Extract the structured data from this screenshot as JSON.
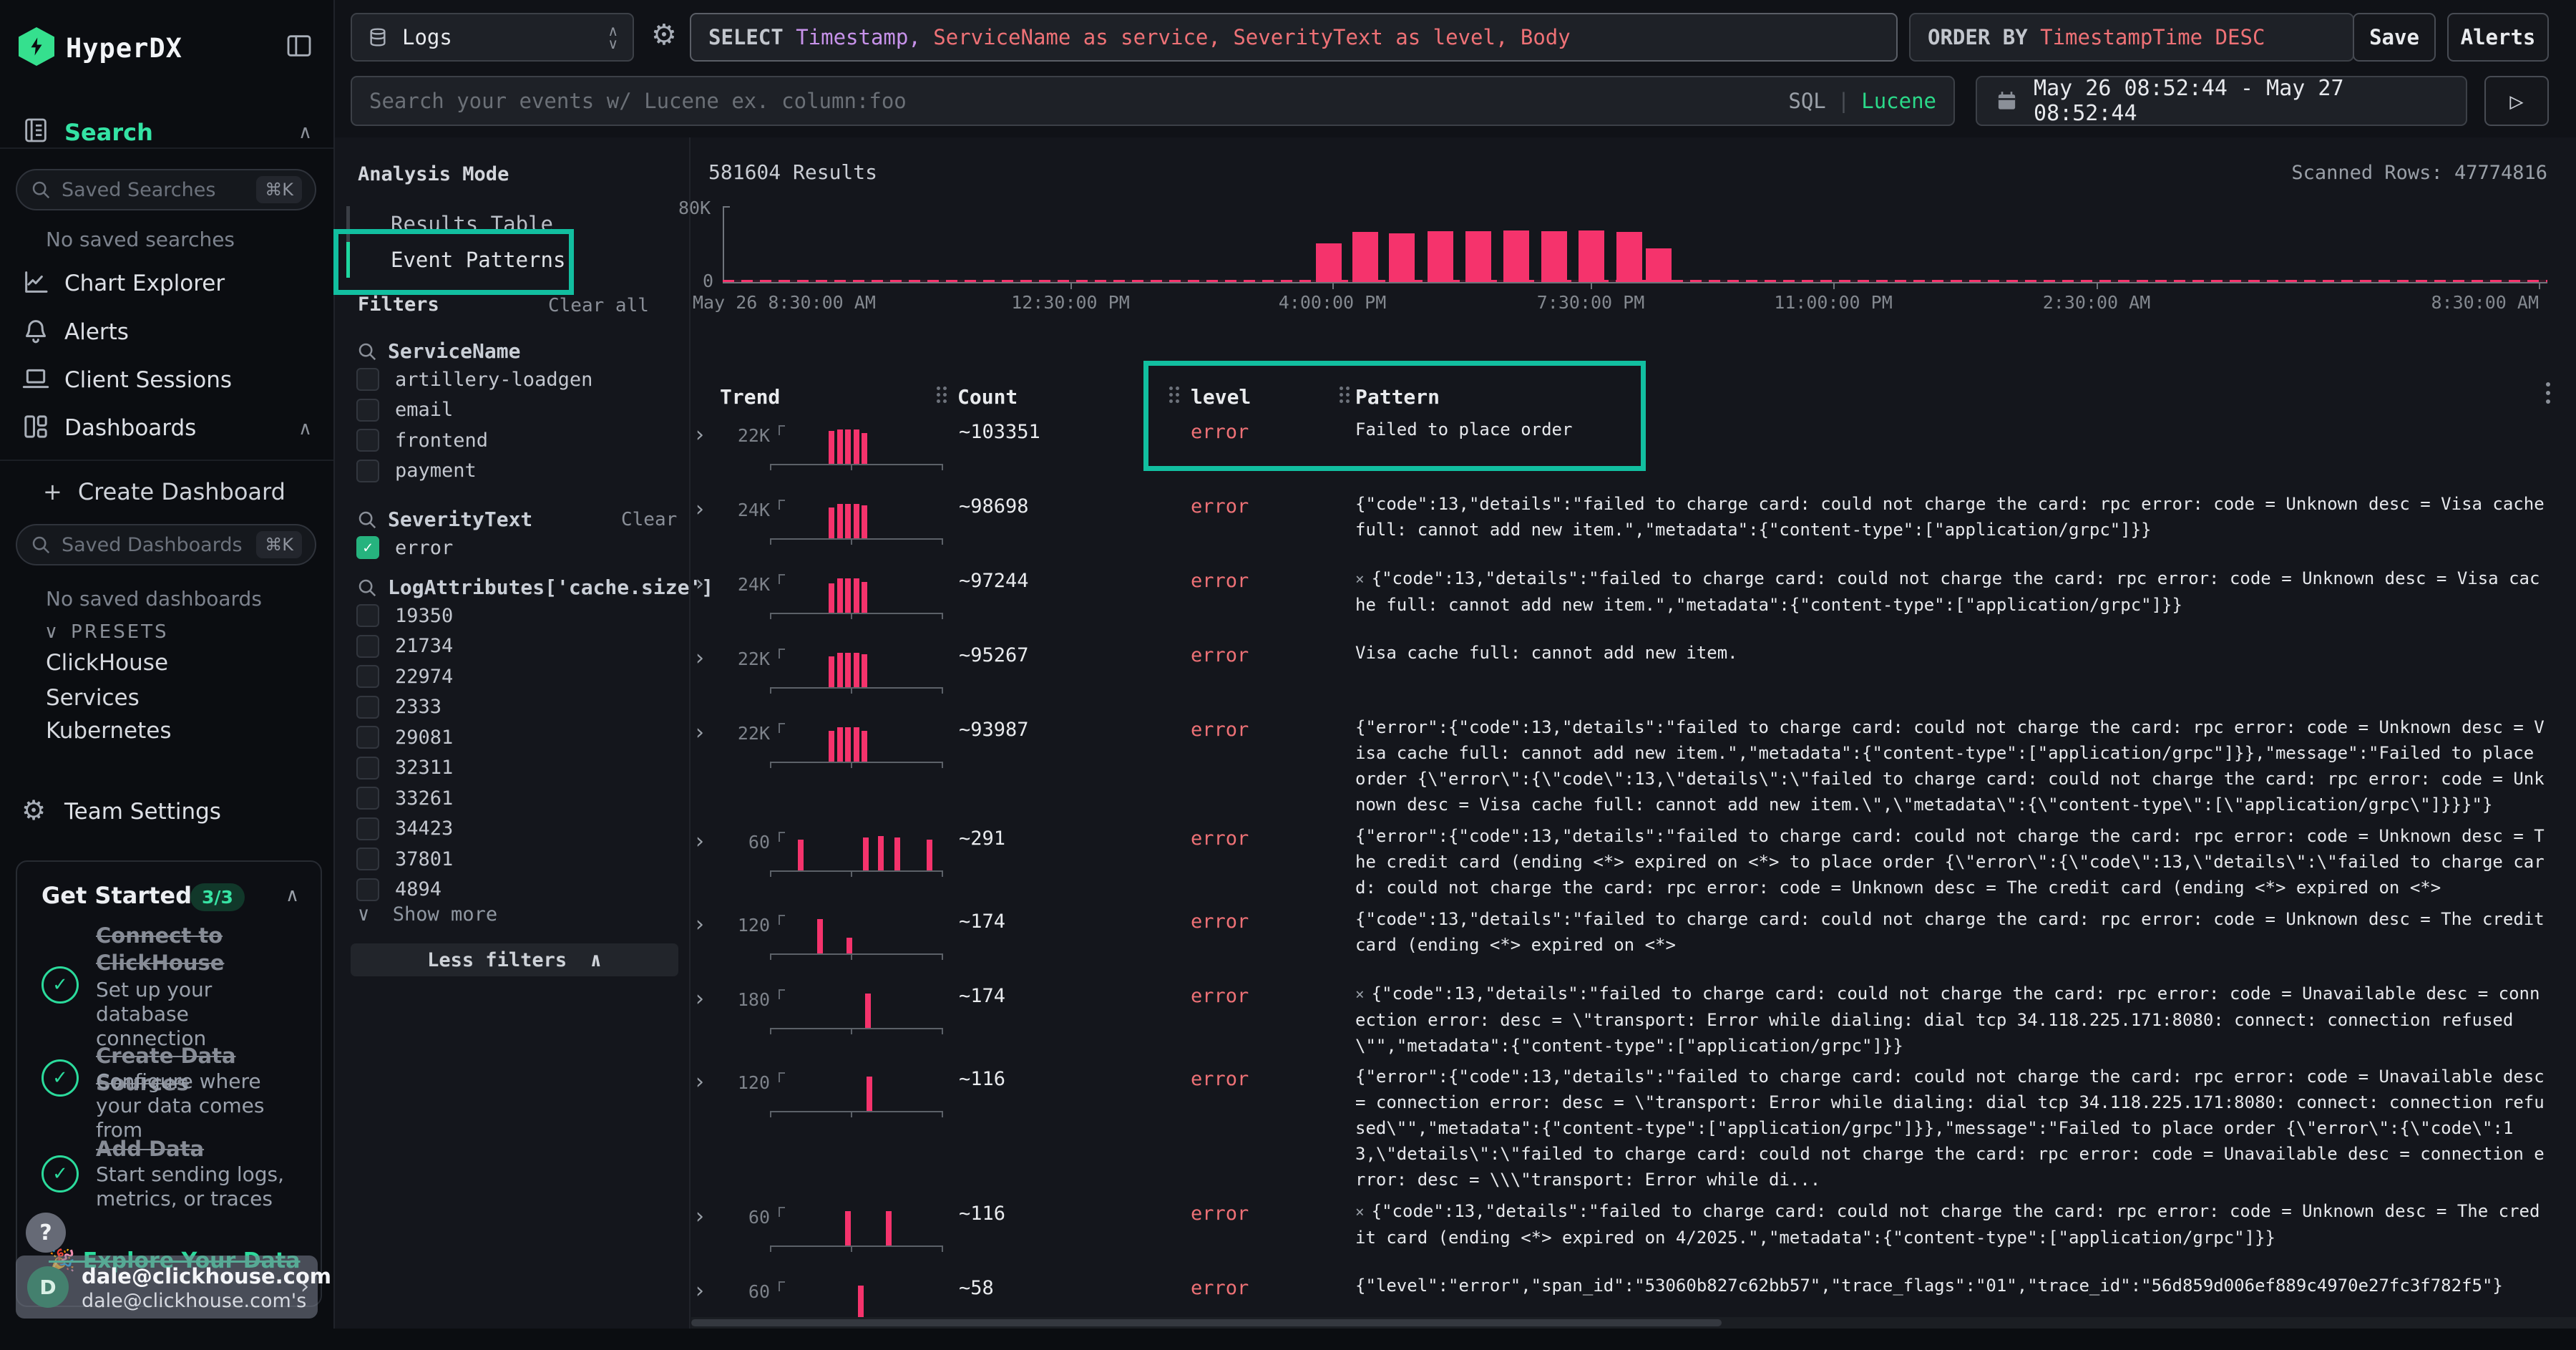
{
  "colors": {
    "accent_green": "#2fe0a2",
    "pink_bar": "#f5336c",
    "salmon": "#ee7176",
    "purple": "#c792ea",
    "teal_annotation": "#12bfa0",
    "checkbox_green": "#26b37e"
  },
  "sidebar": {
    "brand": "HyperDX",
    "search_label": "Search",
    "saved_searches_placeholder": "Saved Searches",
    "shortcut": "⌘K",
    "no_saved_searches": "No saved searches",
    "nav": [
      {
        "icon": "chart-line",
        "label": "Chart Explorer"
      },
      {
        "icon": "bell",
        "label": "Alerts"
      },
      {
        "icon": "laptop",
        "label": "Client Sessions"
      },
      {
        "icon": "grid",
        "label": "Dashboards",
        "chevron": "∧"
      }
    ],
    "create_dashboard_label": "Create Dashboard",
    "saved_dashboards_placeholder": "Saved Dashboards",
    "no_saved_dashboards": "No saved dashboards",
    "presets_label": "PRESETS",
    "presets": [
      "ClickHouse",
      "Services",
      "Kubernetes"
    ],
    "team_settings_label": "Team Settings",
    "get_started": {
      "title": "Get Started",
      "badge": "3/3",
      "items": [
        {
          "title": "Connect to ClickHouse",
          "subtitle": "Set up your database connection"
        },
        {
          "title": "Create Data Sources",
          "subtitle": "Configure where your data comes from"
        },
        {
          "title": "Add Data",
          "subtitle": "Start sending logs, metrics, or traces"
        }
      ],
      "hidden_item": "🎉 Explore Your Data"
    },
    "help_label": "?",
    "user": {
      "initial": "D",
      "name": "dale@clickhouse.com",
      "subtitle": "dale@clickhouse.com's"
    }
  },
  "topbar": {
    "source_label": "Logs",
    "sql_tokens": [
      {
        "t": "SELECT ",
        "c": "kw"
      },
      {
        "t": "Timestamp",
        "c": "p"
      },
      {
        "t": ", ",
        "c": "p"
      },
      {
        "t": "ServiceName as service",
        "c": "r"
      },
      {
        "t": ", ",
        "c": "r"
      },
      {
        "t": "SeverityText as level",
        "c": "r"
      },
      {
        "t": ", ",
        "c": "r"
      },
      {
        "t": "Body",
        "c": "r"
      }
    ],
    "order_tokens": [
      {
        "t": "ORDER BY ",
        "c": "kw"
      },
      {
        "t": "TimestampTime DESC",
        "c": "r"
      }
    ],
    "save_label": "Save",
    "alerts_label": "Alerts",
    "search_placeholder": "Search your events w/ Lucene ex. column:foo",
    "mode_sql": "SQL",
    "mode_divider": "|",
    "mode_lucene": "Lucene",
    "date_range": "May 26 08:52:44 - May 27 08:52:44"
  },
  "analysis": {
    "title": "Analysis Mode",
    "options": [
      {
        "label": "Results Table",
        "active": false
      },
      {
        "label": "Event Patterns",
        "active": true
      }
    ]
  },
  "filters": {
    "title": "Filters",
    "clear_all": "Clear all",
    "groups": [
      {
        "name": "ServiceName",
        "clear": "",
        "options": [
          {
            "label": "artillery-loadgen",
            "checked": false
          },
          {
            "label": "email",
            "checked": false
          },
          {
            "label": "frontend",
            "checked": false
          },
          {
            "label": "payment",
            "checked": false
          }
        ]
      },
      {
        "name": "SeverityText",
        "clear": "Clear",
        "options": [
          {
            "label": "error",
            "checked": true
          }
        ]
      },
      {
        "name": "LogAttributes['cache.size']",
        "clear": "",
        "options": [
          {
            "label": "19350",
            "checked": false
          },
          {
            "label": "21734",
            "checked": false
          },
          {
            "label": "22974",
            "checked": false
          },
          {
            "label": "2333",
            "checked": false
          },
          {
            "label": "29081",
            "checked": false
          },
          {
            "label": "32311",
            "checked": false
          },
          {
            "label": "33261",
            "checked": false
          },
          {
            "label": "34423",
            "checked": false
          },
          {
            "label": "37801",
            "checked": false
          },
          {
            "label": "4894",
            "checked": false
          }
        ]
      }
    ],
    "show_more": "Show more",
    "less_filters": "Less filters"
  },
  "results": {
    "count_label": "581604 Results",
    "scanned_label": "Scanned Rows: 47774816",
    "table": {
      "columns": [
        "Trend",
        "Count",
        "level",
        "Pattern"
      ],
      "rows": [
        {
          "count": "~103351",
          "level": "error",
          "dismiss": false,
          "pattern": "Failed to place order",
          "spark": {
            "label": "22K",
            "bars": [
              [
                0.3,
                0.95
              ],
              [
                0.35,
                1
              ],
              [
                0.4,
                1
              ],
              [
                0.45,
                1
              ],
              [
                0.5,
                0.9
              ]
            ]
          }
        },
        {
          "count": "~98698",
          "level": "error",
          "dismiss": false,
          "pattern": "{\"code\":13,\"details\":\"failed to charge card: could not charge the card: rpc error: code = Unknown desc = Visa cache full: cannot add new item.\",\"metadata\":{\"content-type\":[\"application/grpc\"]}}",
          "spark": {
            "label": "24K",
            "bars": [
              [
                0.3,
                0.9
              ],
              [
                0.35,
                1
              ],
              [
                0.4,
                1
              ],
              [
                0.45,
                1
              ],
              [
                0.5,
                0.95
              ]
            ]
          }
        },
        {
          "count": "~97244",
          "level": "error",
          "dismiss": true,
          "pattern": "{\"code\":13,\"details\":\"failed to charge card: could not charge the card: rpc error: code = Unknown desc = Visa cache full: cannot add new item.\",\"metadata\":{\"content-type\":[\"application/grpc\"]}}",
          "spark": {
            "label": "24K",
            "bars": [
              [
                0.3,
                0.85
              ],
              [
                0.35,
                1
              ],
              [
                0.4,
                1
              ],
              [
                0.45,
                1
              ],
              [
                0.5,
                0.9
              ]
            ]
          }
        },
        {
          "count": "~95267",
          "level": "error",
          "dismiss": false,
          "pattern": "Visa cache full: cannot add new item.",
          "spark": {
            "label": "22K",
            "bars": [
              [
                0.3,
                0.9
              ],
              [
                0.35,
                1
              ],
              [
                0.4,
                1
              ],
              [
                0.45,
                1
              ],
              [
                0.5,
                0.95
              ]
            ]
          }
        },
        {
          "count": "~93987",
          "level": "error",
          "dismiss": false,
          "pattern": "{\"error\":{\"code\":13,\"details\":\"failed to charge card: could not charge the card: rpc error: code = Unknown desc = Visa cache full: cannot add new item.\",\"metadata\":{\"content-type\":[\"application/grpc\"]}},\"message\":\"Failed to place order {\\\"error\\\":{\\\"code\\\":13,\\\"details\\\":\\\"failed to charge card: could not charge the card: rpc error: code = Unknown desc = Visa cache full: cannot add new item.\\\",\\\"metadata\\\":{\\\"content-type\\\":[\\\"application/grpc\\\"]}}}\"}",
          "spark": {
            "label": "22K",
            "bars": [
              [
                0.3,
                0.9
              ],
              [
                0.35,
                1
              ],
              [
                0.4,
                1
              ],
              [
                0.45,
                1
              ],
              [
                0.5,
                0.9
              ]
            ]
          }
        },
        {
          "count": "~291",
          "level": "error",
          "dismiss": false,
          "pattern": "{\"error\":{\"code\":13,\"details\":\"failed to charge card: could not charge the card: rpc error: code = Unknown desc = The credit card (ending <*> expired on <*> to place order {\\\"error\\\":{\\\"code\\\":13,\\\"details\\\":\\\"failed to charge card: could not charge the card: rpc error: code = Unknown desc = The credit card (ending <*> expired on <*>",
          "spark": {
            "label": "60",
            "bars": [
              [
                0.11,
                0.9
              ],
              [
                0.51,
                0.95
              ],
              [
                0.6,
                1
              ],
              [
                0.7,
                0.95
              ],
              [
                0.9,
                0.9
              ]
            ]
          }
        },
        {
          "count": "~174",
          "level": "error",
          "dismiss": false,
          "pattern": "{\"code\":13,\"details\":\"failed to charge card: could not charge the card: rpc error: code = Unknown desc = The credit card (ending <*> expired on <*>",
          "spark": {
            "label": "120",
            "bars": [
              [
                0.23,
                1
              ],
              [
                0.41,
                0.45
              ]
            ]
          }
        },
        {
          "count": "~174",
          "level": "error",
          "dismiss": true,
          "pattern": "{\"code\":13,\"details\":\"failed to charge card: could not charge the card: rpc error: code = Unavailable desc = connection error: desc = \\\"transport: Error while dialing: dial tcp 34.118.225.171:8080: connect: connection refused\\\"\",\"metadata\":{\"content-type\":[\"application/grpc\"]}}",
          "spark": {
            "label": "180",
            "bars": [
              [
                0.52,
                1
              ]
            ]
          }
        },
        {
          "count": "~116",
          "level": "error",
          "dismiss": false,
          "pattern": "{\"error\":{\"code\":13,\"details\":\"failed to charge card: could not charge the card: rpc error: code = Unavailable desc = connection error: desc = \\\"transport: Error while dialing: dial tcp 34.118.225.171:8080: connect: connection refused\\\"\",\"metadata\":{\"content-type\":[\"application/grpc\"]}},\"message\":\"Failed to place order {\\\"error\\\":{\\\"code\\\":13,\\\"details\\\":\\\"failed to charge card: could not charge the card: rpc error: code = Unavailable desc = connection error: desc = \\\\\\\"transport: Error while di...",
          "spark": {
            "label": "120",
            "bars": [
              [
                0.53,
                1
              ]
            ]
          }
        },
        {
          "count": "~116",
          "level": "error",
          "dismiss": true,
          "pattern": "{\"code\":13,\"details\":\"failed to charge card: could not charge the card: rpc error: code = Unknown desc = The credit card (ending <*> expired on 4/2025.\",\"metadata\":{\"content-type\":[\"application/grpc\"]}}",
          "spark": {
            "label": "60",
            "bars": [
              [
                0.4,
                1
              ],
              [
                0.65,
                1
              ]
            ]
          }
        },
        {
          "count": "~58",
          "level": "error",
          "dismiss": false,
          "pattern": "{\"level\":\"error\",\"span_id\":\"53060b827c62bb57\",\"trace_flags\":\"01\",\"trace_id\":\"56d859d006ef889c4970e27fc3f782f5\"}",
          "spark": {
            "label": "60",
            "bars": [
              [
                0.48,
                1
              ]
            ]
          }
        }
      ]
    }
  },
  "chart_data": {
    "type": "bar",
    "title": "581604 Results",
    "ylabel": "",
    "xlabel": "",
    "ylim": [
      0,
      80000
    ],
    "y_ticks": [
      "80K",
      "0"
    ],
    "x_tick_labels": [
      "May 26 8:30:00 AM",
      "12:30:00 PM",
      "4:00:00 PM",
      "7:30:00 PM",
      "11:00:00 PM",
      "2:30:00 AM",
      "8:30:00 AM"
    ],
    "series": [
      {
        "name": "events",
        "approx_values_k": [
          42,
          54,
          52,
          55,
          55,
          56,
          55,
          56,
          54,
          36
        ],
        "note": "bars clustered between ~4:10 PM and ~9:00 PM, near-zero elsewhere"
      }
    ],
    "bar_color": "#f5336c"
  }
}
